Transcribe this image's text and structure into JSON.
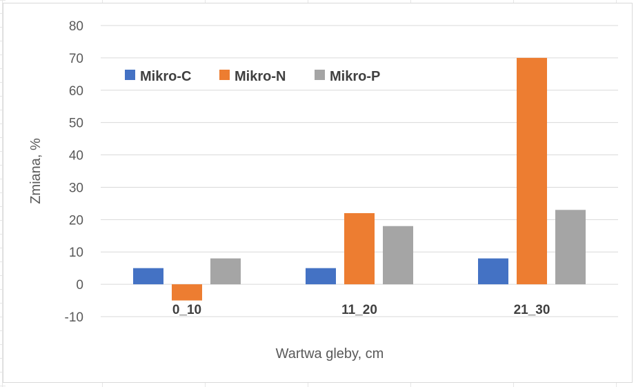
{
  "chart_data": {
    "type": "bar",
    "title": "",
    "xlabel": "Wartwa gleby, cm",
    "ylabel": "Zmiana, %",
    "categories": [
      "0_10",
      "11_20",
      "21_30"
    ],
    "series": [
      {
        "name": "Mikro-C",
        "color": "#4472C4",
        "values": [
          5,
          5,
          8
        ]
      },
      {
        "name": "Mikro-N",
        "color": "#ED7D31",
        "values": [
          -5,
          22,
          70
        ]
      },
      {
        "name": "Mikro-P",
        "color": "#A5A5A5",
        "values": [
          8,
          18,
          23
        ]
      }
    ],
    "ylim": [
      -10,
      80
    ],
    "yticks": [
      -10,
      0,
      10,
      20,
      30,
      40,
      50,
      60,
      70,
      80
    ],
    "grid": true,
    "legend_position": "top-left"
  }
}
